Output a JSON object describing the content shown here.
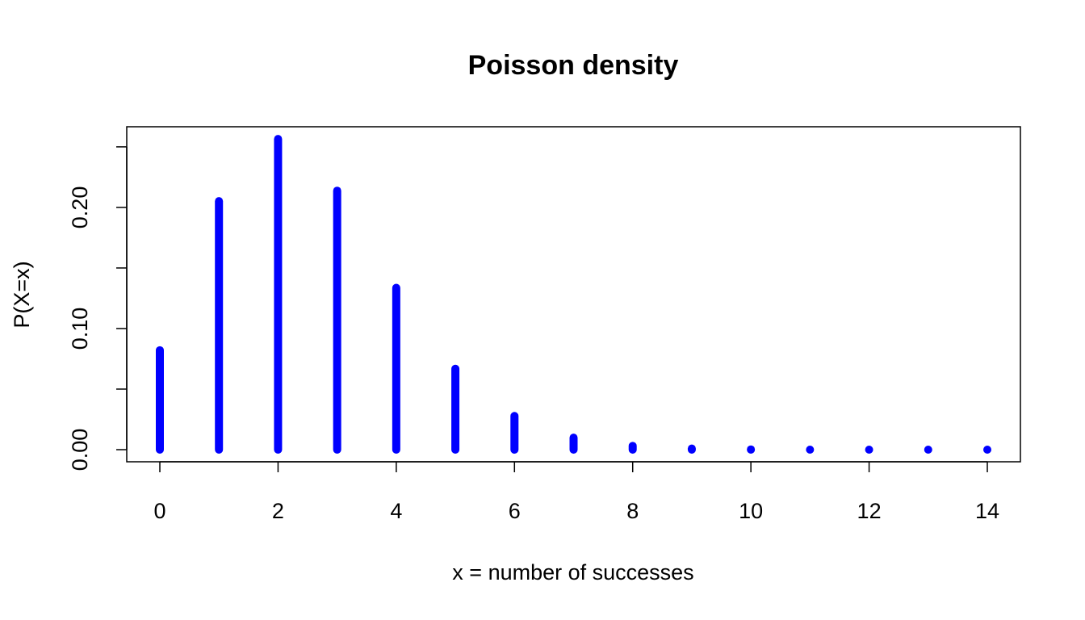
{
  "chart_data": {
    "type": "bar",
    "title": "Poisson density",
    "xlabel": "x = number of successes",
    "ylabel": "P(X=x)",
    "x": [
      0,
      1,
      2,
      3,
      4,
      5,
      6,
      7,
      8,
      9,
      10,
      11,
      12,
      13,
      14
    ],
    "values": [
      0.0821,
      0.2052,
      0.2565,
      0.2138,
      0.1336,
      0.0668,
      0.0278,
      0.0099,
      0.0031,
      0.0009,
      0.0002,
      0.0,
      0.0,
      0.0,
      0.0
    ],
    "xlim": [
      -0.56,
      14.56
    ],
    "ylim": [
      -0.01,
      0.2666
    ],
    "xticks": [
      0,
      2,
      4,
      6,
      8,
      10,
      12,
      14
    ],
    "xtick_labels": [
      "0",
      "2",
      "4",
      "6",
      "8",
      "10",
      "12",
      "14"
    ],
    "yticks": [
      0.0,
      0.05,
      0.1,
      0.15,
      0.2,
      0.25
    ],
    "ytick_labels": [
      "0.00",
      "",
      "0.10",
      "",
      "0.20",
      ""
    ],
    "grid": false,
    "legend": "none",
    "series_color": "#0000FF"
  }
}
